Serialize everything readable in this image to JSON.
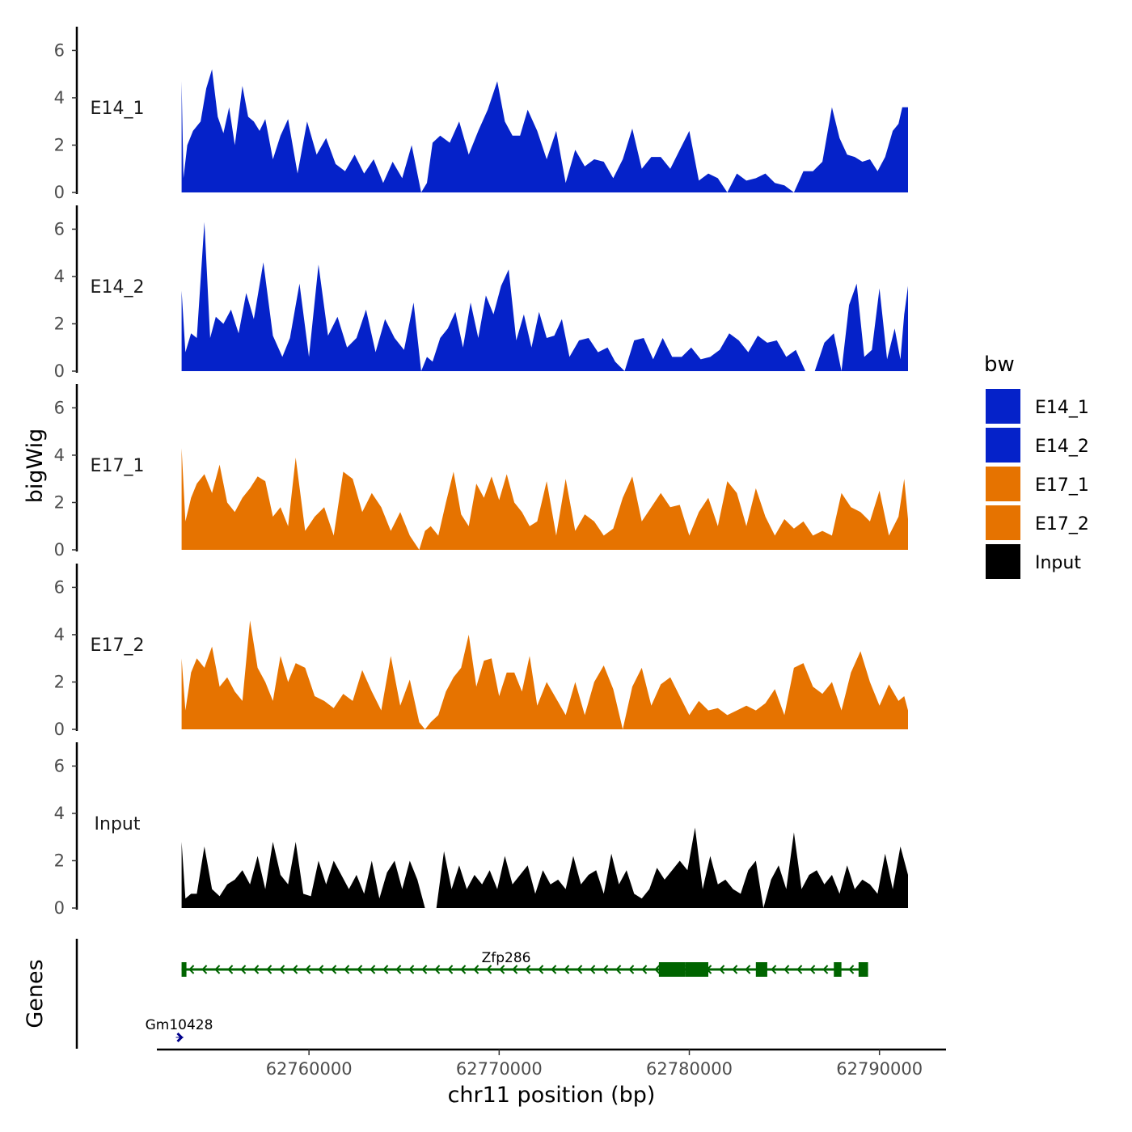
{
  "chart_data": {
    "type": "area",
    "title": "",
    "y_axis_title": "bigWig",
    "genes_axis_title": "Genes",
    "xlabel": "chr11 position (bp)",
    "xlim": [
      62752000,
      62793500
    ],
    "x_ticks": [
      62760000,
      62770000,
      62780000,
      62790000
    ],
    "x_tick_labels": [
      "62760000",
      "62770000",
      "62780000",
      "62790000"
    ],
    "ylim": [
      0,
      6.8
    ],
    "y_ticks": [
      0,
      2,
      4,
      6
    ],
    "y_tick_labels": [
      "0",
      "2",
      "4",
      "6"
    ],
    "legend": {
      "title": "bw",
      "position": "right",
      "entries": [
        {
          "label": "E14_1",
          "color": "#0522C9"
        },
        {
          "label": "E14_2",
          "color": "#0522C9"
        },
        {
          "label": "E17_1",
          "color": "#E67300"
        },
        {
          "label": "E17_2",
          "color": "#E67300"
        },
        {
          "label": "Input",
          "color": "#000000"
        }
      ]
    },
    "tracks": [
      {
        "name": "E14_1",
        "color": "#0522C9",
        "x": [
          62753300,
          62753400,
          62753600,
          62753900,
          62754300,
          62754600,
          62754900,
          62755200,
          62755500,
          62755800,
          62756100,
          62756500,
          62756800,
          62757100,
          62757400,
          62757700,
          62758100,
          62758500,
          62758900,
          62759400,
          62759900,
          62760400,
          62760900,
          62761400,
          62761900,
          62762400,
          62762900,
          62763400,
          62763900,
          62764400,
          62764900,
          62765400,
          62765900,
          62766200,
          62766500,
          62766900,
          62767400,
          62767900,
          62768400,
          62768900,
          62769400,
          62769900,
          62770300,
          62770700,
          62771100,
          62771500,
          62772000,
          62772500,
          62773000,
          62773500,
          62774000,
          62774500,
          62775000,
          62775500,
          62776000,
          62776500,
          62777000,
          62777500,
          62778000,
          62778500,
          62779000,
          62779500,
          62780000,
          62780500,
          62781000,
          62781500,
          62782000,
          62782500,
          62783000,
          62783500,
          62784000,
          62784500,
          62785000,
          62785500,
          62786000,
          62786500,
          62787000,
          62787500,
          62787900,
          62788300,
          62788700,
          62789100,
          62789500,
          62789900,
          62790300,
          62790700,
          62791000,
          62791200,
          62791500
        ],
        "y": [
          4.7,
          0.6,
          2.0,
          2.6,
          3.0,
          4.4,
          5.2,
          3.2,
          2.5,
          3.6,
          2.0,
          4.5,
          3.2,
          3.0,
          2.6,
          3.1,
          1.4,
          2.4,
          3.1,
          0.8,
          3.0,
          1.6,
          2.3,
          1.2,
          0.9,
          1.6,
          0.8,
          1.4,
          0.4,
          1.3,
          0.6,
          2.0,
          0.0,
          0.4,
          2.1,
          2.4,
          2.1,
          3.0,
          1.6,
          2.6,
          3.5,
          4.7,
          3.0,
          2.4,
          2.4,
          3.5,
          2.6,
          1.4,
          2.6,
          0.4,
          1.8,
          1.1,
          1.4,
          1.3,
          0.6,
          1.4,
          2.7,
          1.0,
          1.5,
          1.5,
          1.0,
          1.8,
          2.6,
          0.5,
          0.8,
          0.6,
          0.0,
          0.8,
          0.5,
          0.6,
          0.8,
          0.4,
          0.3,
          0.0,
          0.9,
          0.9,
          1.3,
          3.6,
          2.3,
          1.6,
          1.5,
          1.3,
          1.4,
          0.9,
          1.5,
          2.6,
          2.9,
          3.6,
          3.6
        ]
      },
      {
        "name": "E14_2",
        "color": "#0522C9",
        "x": [
          62753300,
          62753500,
          62753800,
          62754100,
          62754500,
          62754800,
          62755100,
          62755500,
          62755900,
          62756300,
          62756700,
          62757100,
          62757600,
          62758100,
          62758600,
          62759000,
          62759500,
          62760000,
          62760500,
          62761000,
          62761500,
          62762000,
          62762500,
          62763000,
          62763500,
          62764000,
          62764500,
          62765000,
          62765500,
          62765900,
          62766200,
          62766500,
          62766900,
          62767300,
          62767700,
          62768100,
          62768500,
          62768900,
          62769300,
          62769700,
          62770100,
          62770500,
          62770900,
          62771300,
          62771700,
          62772100,
          62772500,
          62772900,
          62773300,
          62773700,
          62774200,
          62774700,
          62775200,
          62775700,
          62776100,
          62776600,
          62777100,
          62777600,
          62778100,
          62778600,
          62779100,
          62779600,
          62780100,
          62780600,
          62781100,
          62781600,
          62782100,
          62782600,
          62783100,
          62783600,
          62784100,
          62784600,
          62785100,
          62785600,
          62786100,
          62786600,
          62787100,
          62787600,
          62788000,
          62788400,
          62788800,
          62789200,
          62789600,
          62790000,
          62790400,
          62790800,
          62791100,
          62791300,
          62791500
        ],
        "y": [
          3.4,
          0.8,
          1.6,
          1.4,
          6.3,
          1.4,
          2.3,
          2.0,
          2.6,
          1.6,
          3.3,
          2.2,
          4.6,
          1.5,
          0.6,
          1.4,
          3.7,
          0.6,
          4.5,
          1.5,
          2.3,
          1.0,
          1.4,
          2.6,
          0.8,
          2.2,
          1.4,
          0.9,
          2.9,
          0.0,
          0.6,
          0.4,
          1.4,
          1.8,
          2.5,
          1.0,
          2.9,
          1.4,
          3.2,
          2.4,
          3.6,
          4.3,
          1.3,
          2.4,
          1.0,
          2.5,
          1.4,
          1.5,
          2.2,
          0.6,
          1.3,
          1.4,
          0.8,
          1.0,
          0.4,
          0.0,
          1.3,
          1.4,
          0.5,
          1.4,
          0.6,
          0.6,
          1.0,
          0.5,
          0.6,
          0.9,
          1.6,
          1.3,
          0.8,
          1.5,
          1.2,
          1.3,
          0.6,
          0.9,
          0.0,
          0.0,
          1.2,
          1.6,
          0.0,
          2.8,
          3.7,
          0.6,
          0.9,
          3.5,
          0.5,
          1.8,
          0.5,
          2.4,
          3.6
        ]
      },
      {
        "name": "E17_1",
        "color": "#E67300",
        "x": [
          62753300,
          62753500,
          62753800,
          62754100,
          62754500,
          62754900,
          62755300,
          62755700,
          62756100,
          62756500,
          62756900,
          62757300,
          62757700,
          62758100,
          62758500,
          62758900,
          62759300,
          62759800,
          62760300,
          62760800,
          62761300,
          62761800,
          62762300,
          62762800,
          62763300,
          62763800,
          62764300,
          62764800,
          62765300,
          62765800,
          62766100,
          62766400,
          62766800,
          62767200,
          62767600,
          62768000,
          62768400,
          62768800,
          62769200,
          62769600,
          62770000,
          62770400,
          62770800,
          62771200,
          62771600,
          62772000,
          62772500,
          62773000,
          62773500,
          62774000,
          62774500,
          62775000,
          62775500,
          62776000,
          62776500,
          62777000,
          62777500,
          62778000,
          62778500,
          62779000,
          62779500,
          62780000,
          62780500,
          62781000,
          62781500,
          62782000,
          62782500,
          62783000,
          62783500,
          62784000,
          62784500,
          62785000,
          62785500,
          62786000,
          62786500,
          62787000,
          62787500,
          62788000,
          62788500,
          62789000,
          62789500,
          62790000,
          62790500,
          62791000,
          62791300,
          62791500
        ],
        "y": [
          4.3,
          1.2,
          2.2,
          2.8,
          3.2,
          2.4,
          3.6,
          2.0,
          1.6,
          2.2,
          2.6,
          3.1,
          2.9,
          1.4,
          1.8,
          1.0,
          3.9,
          0.8,
          1.4,
          1.8,
          0.6,
          3.3,
          3.0,
          1.6,
          2.4,
          1.8,
          0.8,
          1.6,
          0.6,
          0.0,
          0.8,
          1.0,
          0.6,
          2.0,
          3.3,
          1.5,
          1.0,
          2.8,
          2.2,
          3.1,
          2.1,
          3.2,
          2.0,
          1.6,
          1.0,
          1.2,
          2.9,
          0.6,
          3.0,
          0.8,
          1.5,
          1.2,
          0.6,
          0.9,
          2.2,
          3.1,
          1.2,
          1.8,
          2.4,
          1.8,
          1.9,
          0.6,
          1.6,
          2.2,
          1.0,
          2.9,
          2.4,
          1.0,
          2.6,
          1.4,
          0.6,
          1.3,
          0.9,
          1.2,
          0.6,
          0.8,
          0.6,
          2.4,
          1.8,
          1.6,
          1.2,
          2.5,
          0.6,
          1.4,
          3.0,
          1.3
        ]
      },
      {
        "name": "E17_2",
        "color": "#E67300",
        "x": [
          62753300,
          62753500,
          62753800,
          62754100,
          62754500,
          62754900,
          62755300,
          62755700,
          62756100,
          62756500,
          62756900,
          62757300,
          62757700,
          62758100,
          62758500,
          62758900,
          62759300,
          62759800,
          62760300,
          62760800,
          62761300,
          62761800,
          62762300,
          62762800,
          62763300,
          62763800,
          62764300,
          62764800,
          62765300,
          62765800,
          62766100,
          62766400,
          62766800,
          62767200,
          62767600,
          62768000,
          62768400,
          62768800,
          62769200,
          62769600,
          62770000,
          62770400,
          62770800,
          62771200,
          62771600,
          62772000,
          62772500,
          62773000,
          62773500,
          62774000,
          62774500,
          62775000,
          62775500,
          62776000,
          62776500,
          62777000,
          62777500,
          62778000,
          62778500,
          62779000,
          62779500,
          62780000,
          62780500,
          62781000,
          62781500,
          62782000,
          62782500,
          62783000,
          62783500,
          62784000,
          62784500,
          62785000,
          62785500,
          62786000,
          62786500,
          62787000,
          62787500,
          62788000,
          62788500,
          62789000,
          62789500,
          62790000,
          62790500,
          62791000,
          62791300,
          62791500
        ],
        "y": [
          3.0,
          0.8,
          2.4,
          3.0,
          2.6,
          3.5,
          1.8,
          2.2,
          1.6,
          1.2,
          4.6,
          2.6,
          2.0,
          1.2,
          3.1,
          2.0,
          2.8,
          2.6,
          1.4,
          1.2,
          0.9,
          1.5,
          1.2,
          2.5,
          1.6,
          0.8,
          3.1,
          1.0,
          2.1,
          0.3,
          0.0,
          0.3,
          0.6,
          1.6,
          2.2,
          2.6,
          4.0,
          1.8,
          2.9,
          3.0,
          1.4,
          2.4,
          2.4,
          1.6,
          3.1,
          1.0,
          2.0,
          1.3,
          0.6,
          2.0,
          0.6,
          2.0,
          2.7,
          1.7,
          0.0,
          1.8,
          2.6,
          1.0,
          1.9,
          2.2,
          1.4,
          0.6,
          1.2,
          0.8,
          0.9,
          0.6,
          0.8,
          1.0,
          0.8,
          1.1,
          1.7,
          0.6,
          2.6,
          2.8,
          1.8,
          1.5,
          2.0,
          0.8,
          2.4,
          3.3,
          2.0,
          1.0,
          1.9,
          1.2,
          1.4,
          0.8
        ]
      },
      {
        "name": "Input",
        "color": "#000000",
        "x": [
          62753300,
          62753500,
          62753800,
          62754100,
          62754500,
          62754900,
          62755300,
          62755700,
          62756100,
          62756500,
          62756900,
          62757300,
          62757700,
          62758100,
          62758500,
          62758900,
          62759300,
          62759700,
          62760100,
          62760500,
          62760900,
          62761300,
          62761700,
          62762100,
          62762500,
          62762900,
          62763300,
          62763700,
          62764100,
          62764500,
          62764900,
          62765300,
          62765700,
          62766100,
          62766400,
          62766700,
          62767100,
          62767500,
          62767900,
          62768300,
          62768700,
          62769100,
          62769500,
          62769900,
          62770300,
          62770700,
          62771100,
          62771500,
          62771900,
          62772300,
          62772700,
          62773100,
          62773500,
          62773900,
          62774300,
          62774700,
          62775100,
          62775500,
          62775900,
          62776300,
          62776700,
          62777100,
          62777500,
          62777900,
          62778300,
          62778700,
          62779100,
          62779500,
          62779900,
          62780300,
          62780700,
          62781100,
          62781500,
          62781900,
          62782300,
          62782700,
          62783100,
          62783500,
          62783900,
          62784300,
          62784700,
          62785100,
          62785500,
          62785900,
          62786300,
          62786700,
          62787100,
          62787500,
          62787900,
          62788300,
          62788700,
          62789100,
          62789500,
          62789900,
          62790300,
          62790700,
          62791100,
          62791500
        ],
        "y": [
          2.8,
          0.4,
          0.6,
          0.6,
          2.6,
          0.8,
          0.5,
          1.0,
          1.2,
          1.6,
          1.0,
          2.2,
          0.8,
          2.8,
          1.4,
          1.0,
          2.8,
          0.6,
          0.5,
          2.0,
          1.0,
          2.0,
          1.4,
          0.8,
          1.4,
          0.6,
          2.0,
          0.4,
          1.5,
          2.0,
          0.8,
          2.0,
          1.2,
          0.0,
          0.0,
          0.0,
          2.4,
          0.8,
          1.8,
          0.8,
          1.4,
          1.0,
          1.6,
          0.8,
          2.2,
          1.0,
          1.4,
          1.8,
          0.6,
          1.6,
          1.0,
          1.2,
          0.8,
          2.2,
          1.0,
          1.4,
          1.6,
          0.6,
          2.3,
          1.0,
          1.6,
          0.6,
          0.4,
          0.8,
          1.7,
          1.2,
          1.6,
          2.0,
          1.6,
          3.4,
          0.8,
          2.2,
          1.0,
          1.2,
          0.8,
          0.6,
          1.6,
          2.0,
          0.0,
          1.2,
          1.8,
          0.8,
          3.2,
          0.8,
          1.4,
          1.6,
          1.0,
          1.4,
          0.6,
          1.8,
          0.8,
          1.2,
          1.0,
          0.6,
          2.3,
          0.8,
          2.6,
          1.4
        ]
      }
    ],
    "genes": [
      {
        "name": "Zfp286",
        "strand": "-",
        "color": "#006400",
        "start": 62753300,
        "end": 62789400,
        "exons": [
          [
            62753300,
            62753550
          ],
          [
            62778400,
            62779800
          ],
          [
            62779800,
            62781000
          ],
          [
            62783500,
            62784100
          ],
          [
            62787600,
            62788000
          ],
          [
            62788900,
            62789400
          ]
        ]
      },
      {
        "name": "Gm10428",
        "strand": "+",
        "color": "#00008B",
        "start": 62753000,
        "end": 62753400,
        "exons": []
      }
    ]
  }
}
